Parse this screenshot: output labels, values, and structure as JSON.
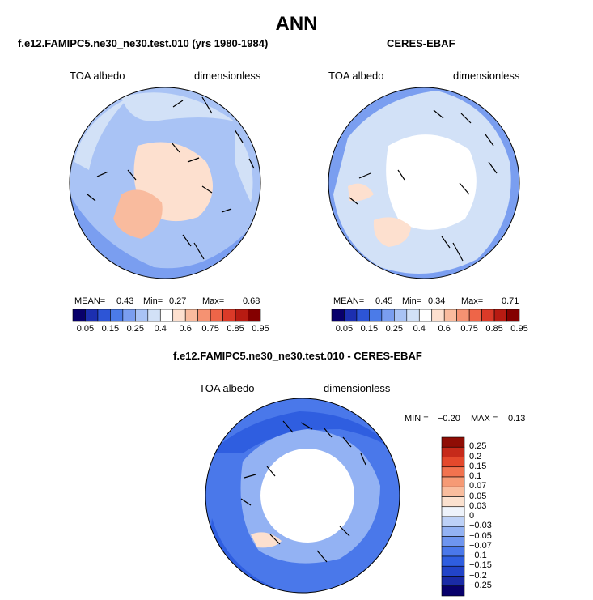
{
  "title": "ANN",
  "panels": [
    {
      "name": "model",
      "title": "f.e12.FAMIPC5.ne30_ne30.test.010 (yrs 1980-1984)",
      "variable": "TOA albedo",
      "units": "dimensionless",
      "stats": {
        "mean_label": "MEAN=",
        "mean": "0.43",
        "min_label": "Min=",
        "min": "0.27",
        "max_label": "Max=",
        "max": "0.68"
      }
    },
    {
      "name": "obs",
      "title": "CERES-EBAF",
      "variable": "TOA albedo",
      "units": "dimensionless",
      "stats": {
        "mean_label": "MEAN=",
        "mean": "0.45",
        "min_label": "Min=",
        "min": "0.34",
        "max_label": "Max=",
        "max": "0.71"
      }
    },
    {
      "name": "diff",
      "title": "f.e12.FAMIPC5.ne30_ne30.test.010 - CERES-EBAF",
      "variable": "TOA albedo",
      "units": "dimensionless",
      "stats": {
        "min_label": "MIN =",
        "min": "−0.20",
        "max_label": "MAX =",
        "max": "0.13"
      }
    }
  ],
  "colorbar_abs": {
    "colors": [
      "#08006b",
      "#1c2fb0",
      "#2d55d6",
      "#4b7be8",
      "#7a9ef0",
      "#a9c3f5",
      "#d2e1f7",
      "#ffffff",
      "#fde0cf",
      "#f9bb9e",
      "#f59272",
      "#ee6548",
      "#db3a28",
      "#b81b12",
      "#840000"
    ],
    "tick_labels": [
      "0.05",
      "0.15",
      "0.25",
      "0.4",
      "0.6",
      "0.75",
      "0.85",
      "0.95"
    ]
  },
  "colorbar_diff": {
    "colors": [
      "#08006b",
      "#1a2ba6",
      "#2244c8",
      "#2f5ee0",
      "#4a78ea",
      "#6e95ef",
      "#93b2f3",
      "#bdd1f7",
      "#eef3fb",
      "#fbe1cf",
      "#f9bd9e",
      "#f69a75",
      "#f2734f",
      "#e4492c",
      "#c62a1a",
      "#8f0d05"
    ],
    "tick_labels": [
      "0.25",
      "0.2",
      "0.15",
      "0.1",
      "0.07",
      "0.05",
      "0.03",
      "0",
      "−0.03",
      "−0.05",
      "−0.07",
      "−0.1",
      "−0.15",
      "−0.2",
      "−0.25"
    ]
  },
  "map_colors": {
    "ocean_base": "#a9c3f5",
    "ocean_light": "#d2e1f7",
    "ocean_mid": "#7a9ef0",
    "ice_pale": "#fde0cf",
    "ice_peach": "#f9bb9e",
    "white": "#ffffff",
    "diff_deep": "#2f5ee0",
    "diff_mid": "#4a78ea",
    "diff_light": "#93b2f3"
  }
}
